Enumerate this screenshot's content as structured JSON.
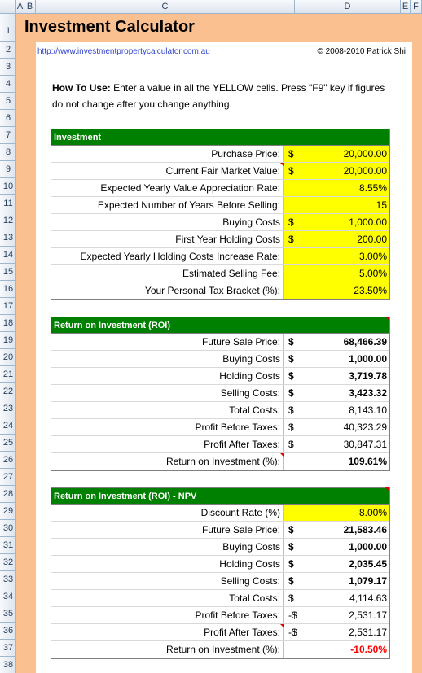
{
  "columns": [
    "A",
    "B",
    "C",
    "D",
    "E",
    "F"
  ],
  "rows": [
    "1",
    "2",
    "3",
    "4",
    "5",
    "6",
    "7",
    "8",
    "9",
    "10",
    "11",
    "12",
    "13",
    "14",
    "15",
    "16",
    "17",
    "18",
    "19",
    "20",
    "21",
    "22",
    "23",
    "24",
    "25",
    "26",
    "27",
    "28",
    "29",
    "30",
    "31",
    "32",
    "33",
    "34",
    "35",
    "36",
    "37",
    "38"
  ],
  "title": "Investment Calculator",
  "link": "http://www.investmentpropertycalculator.com.au",
  "copyright": "© 2008-2010 Patrick Shi",
  "howto": {
    "bold": "How To Use:",
    "text": " Enter a value in all the YELLOW cells. Press \"F9\" key if figures do not change after you change anything."
  },
  "investment": {
    "header": "Investment",
    "rows": [
      {
        "label": "Purchase Price:",
        "cur": "$",
        "value": "20,000.00"
      },
      {
        "label": "Current Fair Market Value:",
        "cur": "$",
        "value": "20,000.00"
      },
      {
        "label": "Expected Yearly Value Appreciation Rate:",
        "cur": "",
        "value": "8.55%"
      },
      {
        "label": "Expected Number of Years Before Selling:",
        "cur": "",
        "value": "15"
      },
      {
        "label": "Buying Costs",
        "cur": "$",
        "value": "1,000.00"
      },
      {
        "label": "First Year Holding Costs",
        "cur": "$",
        "value": "200.00"
      },
      {
        "label": "Expected Yearly Holding Costs Increase Rate:",
        "cur": "",
        "value": "3.00%"
      },
      {
        "label": "Estimated Selling Fee:",
        "cur": "",
        "value": "5.00%"
      },
      {
        "label": "Your Personal Tax Bracket (%):",
        "cur": "",
        "value": "23.50%"
      }
    ]
  },
  "roi": {
    "header": "Return on Investment (ROI)",
    "rows": [
      {
        "label": "Future Sale Price:",
        "cur": "$",
        "value": "68,466.39"
      },
      {
        "label": "Buying Costs",
        "cur": "$",
        "value": "1,000.00"
      },
      {
        "label": "Holding Costs",
        "cur": "$",
        "value": "3,719.78"
      },
      {
        "label": "Selling Costs:",
        "cur": "$",
        "value": "3,423.32"
      },
      {
        "label": "Total Costs:",
        "cur": "$",
        "value": "8,143.10"
      },
      {
        "label": "Profit Before Taxes:",
        "cur": "$",
        "value": "40,323.29"
      },
      {
        "label": "Profit After Taxes:",
        "cur": "$",
        "value": "30,847.31"
      },
      {
        "label": "Return on Investment (%):",
        "cur": "",
        "value": "109.61%"
      }
    ]
  },
  "npv": {
    "header": "Return on Investment (ROI) - NPV",
    "rows": [
      {
        "label": "Discount Rate (%)",
        "cur": "",
        "value": "8.00%"
      },
      {
        "label": "Future Sale Price:",
        "cur": "$",
        "value": "21,583.46"
      },
      {
        "label": "Buying Costs",
        "cur": "$",
        "value": "1,000.00"
      },
      {
        "label": "Holding Costs",
        "cur": "$",
        "value": "2,035.45"
      },
      {
        "label": "Selling Costs:",
        "cur": "$",
        "value": "1,079.17"
      },
      {
        "label": "Total Costs:",
        "cur": "$",
        "value": "4,114.63"
      },
      {
        "label": "Profit Before Taxes:",
        "cur": "-$",
        "value": "2,531.17"
      },
      {
        "label": "Profit After Taxes:",
        "cur": "-$",
        "value": "2,531.17"
      },
      {
        "label": "Return on Investment (%):",
        "cur": "",
        "value": "-10.50%"
      }
    ]
  },
  "colors": {
    "sheet_bg": "#fac090",
    "header_green": "#008000",
    "input_yellow": "#ffff00",
    "negative_red": "#ff0000"
  }
}
